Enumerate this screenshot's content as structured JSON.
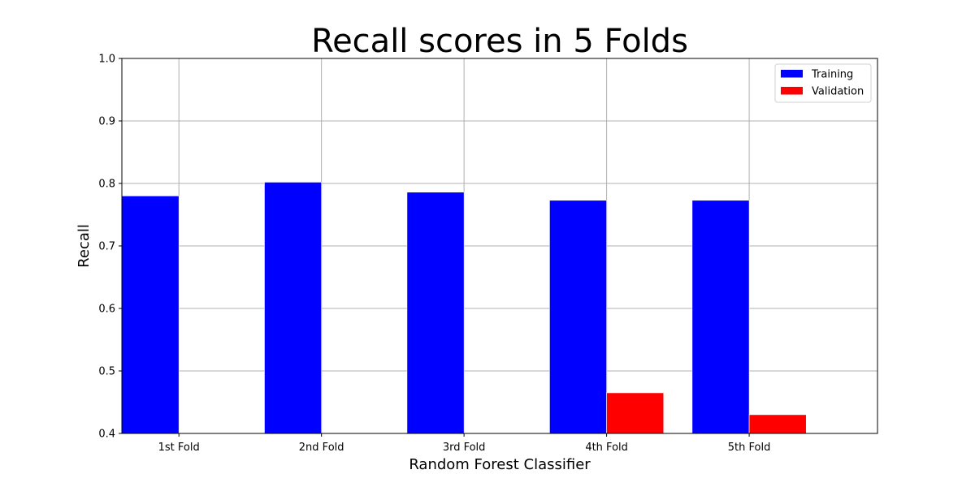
{
  "chart_data": {
    "type": "bar",
    "title": "Recall scores in 5 Folds",
    "xlabel": "Random Forest Classifier",
    "ylabel": "Recall",
    "categories": [
      "1st Fold",
      "2nd Fold",
      "3rd Fold",
      "4th Fold",
      "5th Fold"
    ],
    "series": [
      {
        "name": "Training",
        "color": "#0000ff",
        "values": [
          0.78,
          0.802,
          0.786,
          0.773,
          0.773
        ]
      },
      {
        "name": "Validation",
        "color": "#ff0000",
        "values": [
          0.4,
          0.4,
          0.4,
          0.465,
          0.43
        ]
      }
    ],
    "ylim": [
      0.4,
      1.0
    ],
    "yticks": [
      "0.4",
      "0.5",
      "0.6",
      "0.7",
      "0.8",
      "0.9",
      "1.0"
    ],
    "grid": true,
    "legend_position": "top-right"
  }
}
